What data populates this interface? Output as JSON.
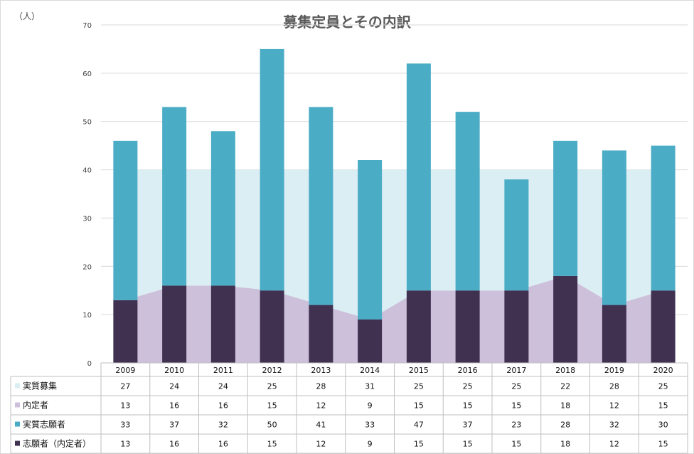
{
  "chart_data": {
    "type": "bar",
    "title": "募集定員とその内訳",
    "ylabel": "（人）",
    "ylim": [
      0,
      70
    ],
    "yticks": [
      0,
      10,
      20,
      30,
      40,
      50,
      60,
      70
    ],
    "grid": true,
    "legend_placement": "data-table-left",
    "categories": [
      "2009",
      "2010",
      "2011",
      "2012",
      "2013",
      "2014",
      "2015",
      "2016",
      "2017",
      "2018",
      "2019",
      "2020"
    ],
    "series": [
      {
        "name": "実質募集",
        "kind": "area-stacked",
        "color": "#daeef3",
        "values": [
          27,
          24,
          24,
          25,
          28,
          31,
          25,
          25,
          25,
          22,
          28,
          25
        ]
      },
      {
        "name": "内定者",
        "kind": "area-stacked",
        "color": "#ccc0da",
        "values": [
          13,
          16,
          16,
          15,
          12,
          9,
          15,
          15,
          15,
          18,
          12,
          15
        ]
      },
      {
        "name": "実質志願者",
        "kind": "bar-stacked",
        "color": "#4bacc6",
        "values": [
          33,
          37,
          32,
          50,
          41,
          33,
          47,
          37,
          23,
          28,
          32,
          30
        ]
      },
      {
        "name": "志願者（内定者）",
        "kind": "bar-stacked",
        "color": "#403151",
        "values": [
          13,
          16,
          16,
          15,
          12,
          9,
          15,
          15,
          15,
          18,
          12,
          15
        ]
      }
    ]
  }
}
